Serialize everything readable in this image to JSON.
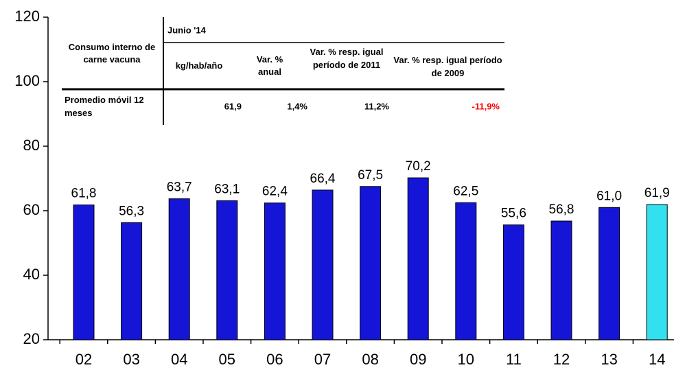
{
  "chart_data": {
    "type": "bar",
    "categories": [
      "02",
      "03",
      "04",
      "05",
      "06",
      "07",
      "08",
      "09",
      "10",
      "11",
      "12",
      "13",
      "14"
    ],
    "values": [
      61.8,
      56.3,
      63.7,
      63.1,
      62.4,
      66.4,
      67.5,
      70.2,
      62.5,
      55.6,
      56.8,
      61.0,
      61.9
    ],
    "value_labels": [
      "61,8",
      "56,3",
      "63,7",
      "63,1",
      "62,4",
      "66,4",
      "67,5",
      "70,2",
      "62,5",
      "55,6",
      "56,8",
      "61,0",
      "61,9"
    ],
    "colors": [
      "#1515d8",
      "#1515d8",
      "#1515d8",
      "#1515d8",
      "#1515d8",
      "#1515d8",
      "#1515d8",
      "#1515d8",
      "#1515d8",
      "#1515d8",
      "#1515d8",
      "#1515d8",
      "#33e0f0"
    ],
    "ylim": [
      20,
      120
    ],
    "yticks": [
      20,
      40,
      60,
      80,
      100,
      120
    ],
    "grid": false
  },
  "table": {
    "row_header": "Consumo interno de carne vacuna",
    "period": "Junio '14",
    "columns": [
      "kg/hab/año",
      "Var. % anual",
      "Var. % resp. igual período de 2011",
      "Var. % resp. igual período de 2009"
    ],
    "row_label": "Promedio móvil 12 meses",
    "row_values": [
      "61,9",
      "1,4%",
      "11,2%",
      "-11,9%"
    ]
  }
}
